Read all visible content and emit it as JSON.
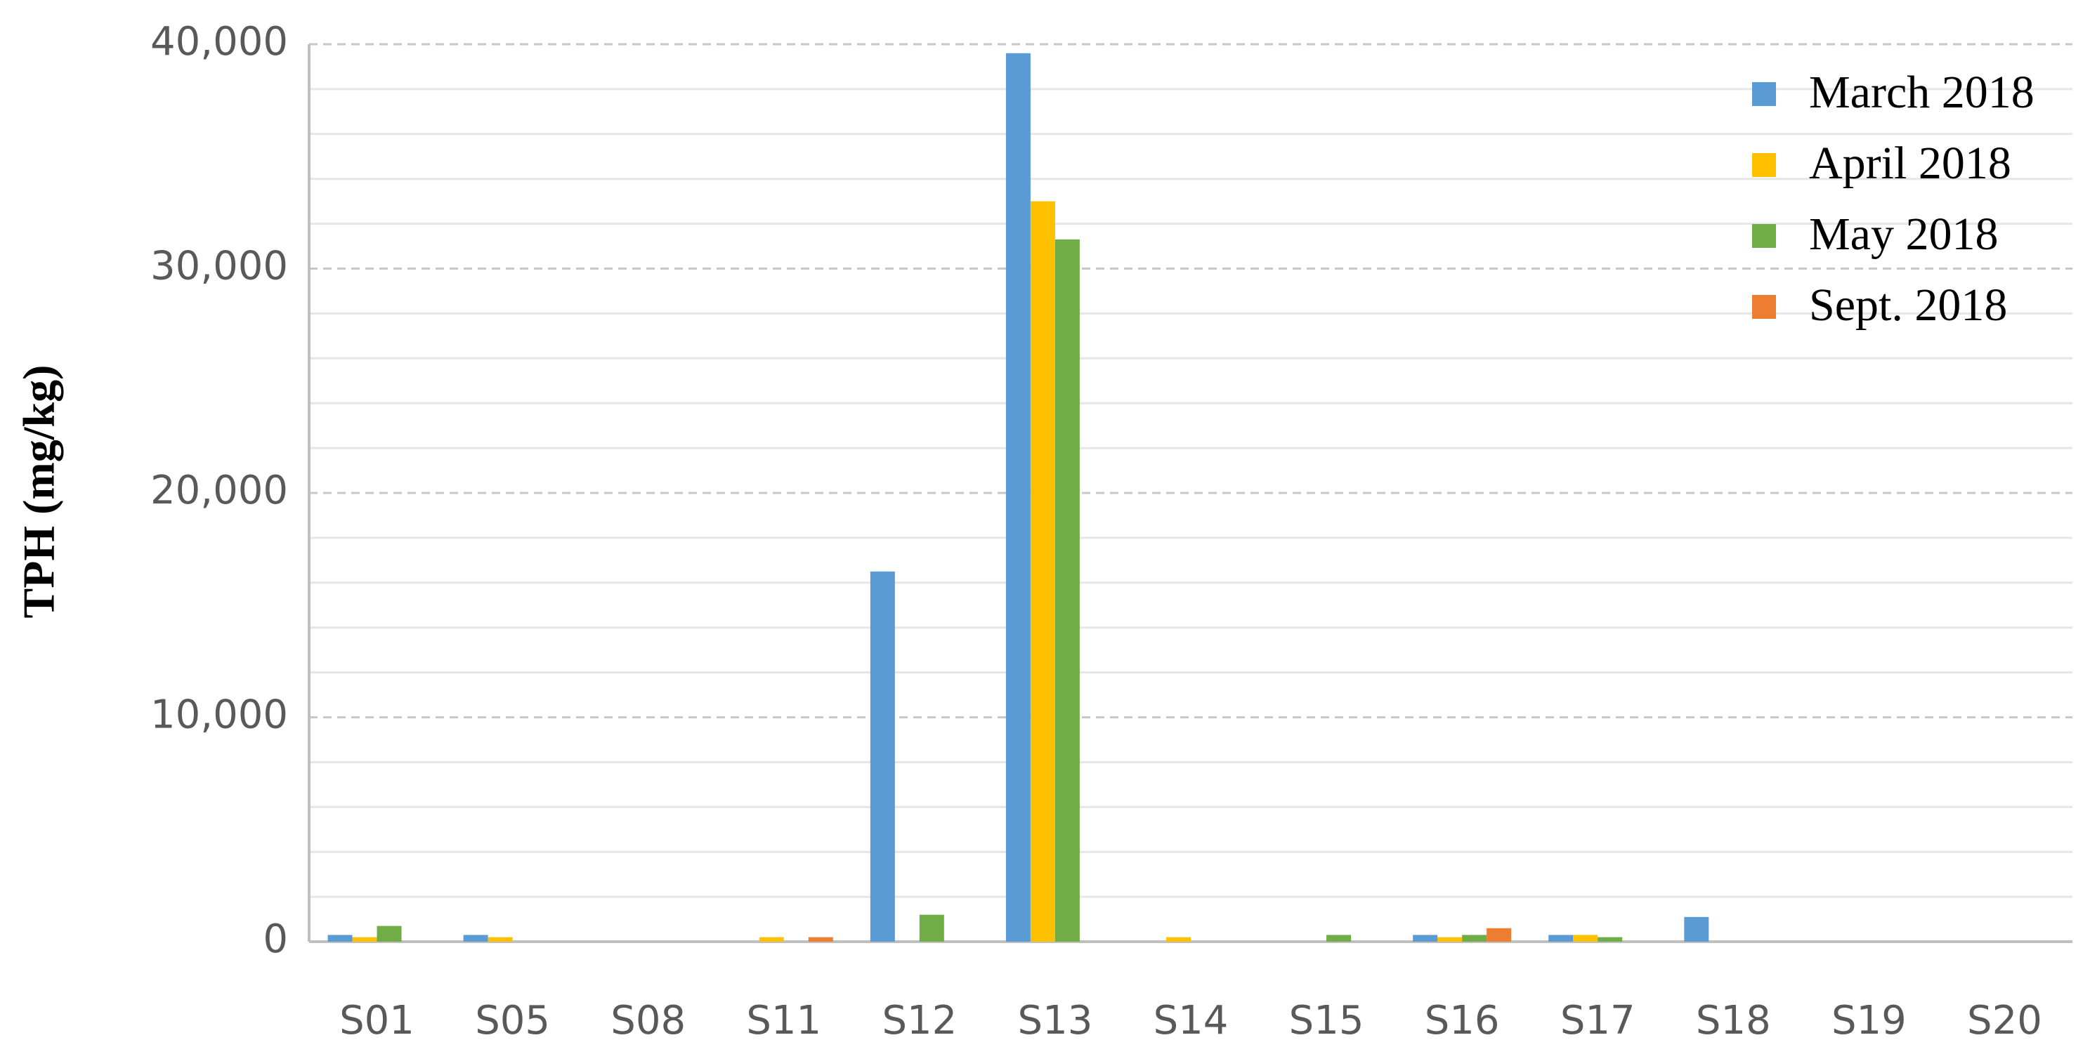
{
  "chart_data": {
    "type": "bar",
    "y_label": "TPH (mg/kg)",
    "categories": [
      "S01",
      "S05",
      "S08",
      "S11",
      "S12",
      "S13",
      "S14",
      "S15",
      "S16",
      "S17",
      "S18",
      "S19",
      "S20"
    ],
    "series": [
      {
        "name": "March 2018",
        "color": "#5b9bd5",
        "values": [
          300,
          300,
          0,
          0,
          16500,
          39600,
          0,
          0,
          300,
          300,
          1100,
          0,
          0
        ]
      },
      {
        "name": "April 2018",
        "color": "#ffc000",
        "values": [
          200,
          200,
          0,
          200,
          0,
          33000,
          200,
          0,
          200,
          300,
          0,
          0,
          0
        ]
      },
      {
        "name": "May 2018",
        "color": "#70ad47",
        "values": [
          700,
          0,
          0,
          0,
          1200,
          31300,
          0,
          300,
          300,
          200,
          0,
          0,
          0
        ]
      },
      {
        "name": "Sept. 2018",
        "color": "#ed7d31",
        "values": [
          0,
          0,
          0,
          200,
          0,
          0,
          0,
          0,
          600,
          0,
          0,
          0,
          0
        ]
      }
    ],
    "ylim": [
      0,
      40000
    ],
    "yticks": [
      0,
      {
        "value": 10000,
        "label": "10,000"
      },
      {
        "value": 20000,
        "label": "20,000"
      },
      {
        "value": 30000,
        "label": "30,000"
      },
      {
        "value": 40000,
        "label": "40,000"
      }
    ],
    "grid": true,
    "minor_grid": true,
    "legend": "upper right"
  }
}
